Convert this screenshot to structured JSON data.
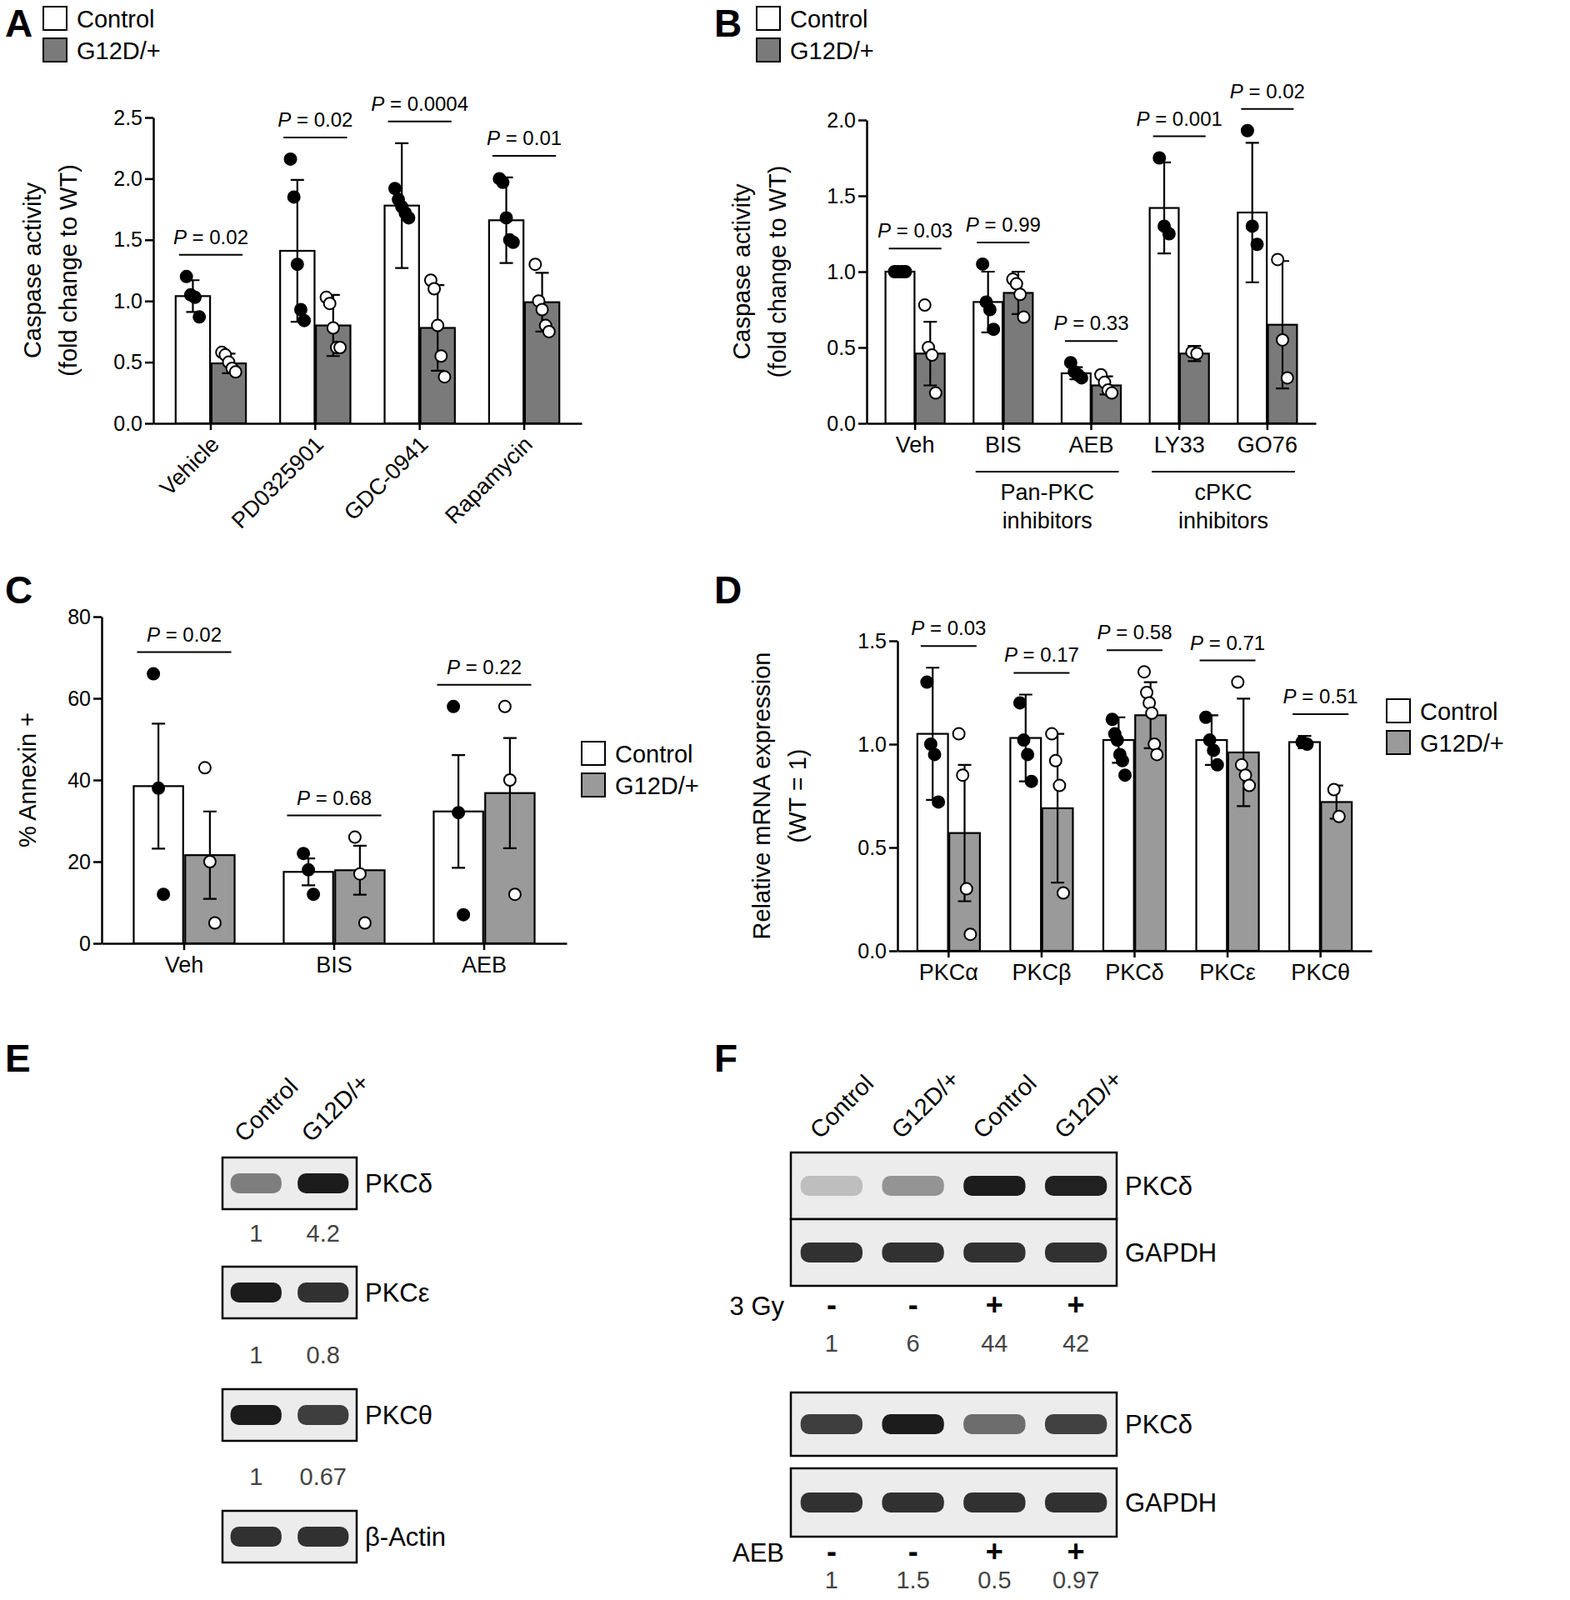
{
  "chart_data": [
    {
      "type": "bar",
      "panel": "A",
      "y_label": [
        "Caspase activity",
        "(fold change to WT)"
      ],
      "categories": [
        "Vehicle",
        "PD0325901",
        "GDC-0941",
        "Rapamycin"
      ],
      "ylim": [
        0,
        2.5
      ],
      "yticks": [
        {
          "value": 0,
          "label": "0.0"
        },
        {
          "value": 0.5,
          "label": "0.5"
        },
        {
          "value": 1,
          "label": "1.0"
        },
        {
          "value": 1.5,
          "label": "1.5"
        },
        {
          "value": 2,
          "label": "2.0"
        },
        {
          "value": 2.5,
          "label": "2.5"
        }
      ],
      "legend": "top-left",
      "series": [
        {
          "name": "Control",
          "color": "#ffffff",
          "marker": "filled-circle",
          "values": [
            1.04,
            1.41,
            1.78,
            1.66
          ],
          "errors": [
            0.13,
            0.58,
            0.51,
            0.35
          ],
          "points": [
            [
              1.2,
              1.05,
              1.03,
              0.87
            ],
            [
              2.16,
              1.85,
              1.3,
              0.93,
              0.84
            ],
            [
              1.92,
              1.83,
              1.77,
              1.72,
              1.68
            ],
            [
              2.0,
              1.97,
              1.68,
              1.5,
              1.48
            ]
          ]
        },
        {
          "name": "G12D/+",
          "color": "#7a7a7a",
          "marker": "open-circle",
          "values": [
            0.49,
            0.8,
            0.78,
            0.99
          ],
          "errors": [
            0.08,
            0.25,
            0.35,
            0.24
          ],
          "points": [
            [
              0.58,
              0.56,
              0.5,
              0.45,
              0.42
            ],
            [
              1.03,
              0.98,
              0.78,
              0.62,
              0.62
            ],
            [
              1.17,
              1.1,
              0.8,
              0.55,
              0.38
            ],
            [
              1.3,
              1.0,
              0.93,
              0.8,
              0.75
            ]
          ]
        }
      ],
      "p_labels": [
        "P = 0.02",
        "P = 0.02",
        "P = 0.0004",
        "P = 0.01"
      ]
    },
    {
      "type": "bar",
      "panel": "B",
      "y_label": [
        "Caspase activity",
        "(fold change to WT)"
      ],
      "categories": [
        "Veh",
        "BIS",
        "AEB",
        "LY33",
        "GO76"
      ],
      "groups": [
        {
          "label": [
            "Pan-PKC",
            "inhibitors"
          ],
          "members": [
            "BIS",
            "AEB"
          ]
        },
        {
          "label": [
            "cPKC",
            "inhibitors"
          ],
          "members": [
            "LY33",
            "GO76"
          ]
        }
      ],
      "ylim": [
        0,
        2
      ],
      "yticks": [
        {
          "value": 0,
          "label": "0.0"
        },
        {
          "value": 0.5,
          "label": "0.5"
        },
        {
          "value": 1,
          "label": "1.0"
        },
        {
          "value": 1.5,
          "label": "1.5"
        },
        {
          "value": 2,
          "label": "2.0"
        }
      ],
      "legend": "top-left",
      "series": [
        {
          "name": "Control",
          "color": "#ffffff",
          "marker": "filled-circle",
          "values": [
            1.0,
            0.8,
            0.33,
            1.42,
            1.39
          ],
          "errors": [
            0.01,
            0.2,
            0.04,
            0.3,
            0.46
          ],
          "points": [
            [
              1.0,
              1.0,
              1.0,
              1.0
            ],
            [
              1.05,
              0.8,
              0.75,
              0.62
            ],
            [
              0.4,
              0.34,
              0.32,
              0.3
            ],
            [
              1.75,
              1.3,
              1.25
            ],
            [
              1.93,
              1.3,
              1.18
            ]
          ]
        },
        {
          "name": "G12D/+",
          "color": "#7a7a7a",
          "marker": "open-circle",
          "values": [
            0.46,
            0.86,
            0.25,
            0.46,
            0.65
          ],
          "errors": [
            0.21,
            0.14,
            0.06,
            0.05,
            0.42
          ],
          "points": [
            [
              0.78,
              0.5,
              0.45,
              0.2
            ],
            [
              0.95,
              0.92,
              0.85,
              0.7
            ],
            [
              0.32,
              0.27,
              0.22,
              0.2
            ],
            [
              0.47,
              0.46
            ],
            [
              1.08,
              0.55,
              0.3
            ]
          ]
        }
      ],
      "p_labels": [
        "P = 0.03",
        "P = 0.99",
        "P = 0.33",
        "P = 0.001",
        "P = 0.02"
      ]
    },
    {
      "type": "bar",
      "panel": "C",
      "y_label": [
        "% Annexin +"
      ],
      "categories": [
        "Veh",
        "BIS",
        "AEB"
      ],
      "ylim": [
        0,
        80
      ],
      "yticks": [
        0,
        20,
        40,
        60,
        80
      ],
      "legend": "right",
      "series": [
        {
          "name": "Control",
          "color": "#ffffff",
          "marker": "filled-circle",
          "values": [
            38.5,
            17.5,
            32.3
          ],
          "errors": [
            15.3,
            3.3,
            13.8
          ],
          "points": [
            [
              66,
              38,
              12
            ],
            [
              22,
              18,
              12
            ],
            [
              58,
              32,
              7
            ]
          ]
        },
        {
          "name": "G12D/+",
          "color": "#9a9a9a",
          "marker": "open-circle",
          "values": [
            21.6,
            17.9,
            36.8
          ],
          "errors": [
            10.7,
            6.0,
            13.5
          ],
          "points": [
            [
              43,
              20,
              5
            ],
            [
              26,
              17,
              5
            ],
            [
              58,
              40,
              12
            ]
          ]
        }
      ],
      "p_labels": [
        "P = 0.02",
        "P = 0.68",
        "P = 0.22"
      ]
    },
    {
      "type": "bar",
      "panel": "D",
      "y_label": [
        "Relative mRNA expression",
        "(WT = 1)"
      ],
      "categories": [
        "PKCα",
        "PKCβ",
        "PKCδ",
        "PKCε",
        "PKCθ"
      ],
      "ylim": [
        0,
        1.5
      ],
      "yticks": [
        {
          "value": 0,
          "label": "0.0"
        },
        {
          "value": 0.5,
          "label": "0.5"
        },
        {
          "value": 1,
          "label": "1.0"
        },
        {
          "value": 1.5,
          "label": "1.5"
        }
      ],
      "legend": "right",
      "series": [
        {
          "name": "Control",
          "color": "#ffffff",
          "marker": "filled-circle",
          "values": [
            1.05,
            1.03,
            1.02,
            1.02,
            1.01
          ],
          "errors": [
            0.32,
            0.21,
            0.11,
            0.12,
            0.03
          ],
          "points": [
            [
              1.3,
              1.0,
              0.95,
              0.72
            ],
            [
              1.2,
              1.02,
              0.95,
              0.82
            ],
            [
              1.12,
              1.05,
              1.02,
              0.95,
              0.92,
              0.85
            ],
            [
              1.13,
              1.02,
              0.97,
              0.9
            ],
            [
              1.01,
              1.0
            ]
          ]
        },
        {
          "name": "G12D/+",
          "color": "#9a9a9a",
          "marker": "open-circle",
          "values": [
            0.57,
            0.69,
            1.14,
            0.96,
            0.72
          ],
          "errors": [
            0.33,
            0.36,
            0.16,
            0.26,
            0.08
          ],
          "points": [
            [
              1.05,
              0.85,
              0.3,
              0.08
            ],
            [
              1.05,
              0.92,
              0.8,
              0.28
            ],
            [
              1.35,
              1.25,
              1.2,
              1.15,
              1.0,
              0.95
            ],
            [
              1.3,
              0.9,
              0.85,
              0.8
            ],
            [
              0.78,
              0.65
            ]
          ]
        }
      ],
      "p_labels": [
        "P = 0.03",
        "P = 0.17",
        "P = 0.58",
        "P = 0.71",
        "P = 0.51"
      ]
    },
    {
      "type": "blot",
      "panel": "E",
      "lanes": [
        "Control",
        "G12D/+"
      ],
      "rows": [
        {
          "label": "PKCδ",
          "values": [
            1,
            4.2
          ]
        },
        {
          "label": "PKCε",
          "values": [
            1,
            0.8
          ]
        },
        {
          "label": "PKCθ",
          "values": [
            1,
            0.67
          ]
        },
        {
          "label": "β-Actin"
        }
      ]
    },
    {
      "type": "blot",
      "panel": "F",
      "lanes": [
        "Control",
        "G12D/+",
        "Control",
        "G12D/+"
      ],
      "sections": [
        {
          "rows": [
            {
              "label": "PKCδ",
              "values": [
                1,
                6,
                44,
                42
              ]
            },
            {
              "label": "GAPDH"
            }
          ],
          "treatment": {
            "label": "3 Gy",
            "signs": [
              "-",
              "-",
              "+",
              "+"
            ]
          }
        },
        {
          "rows": [
            {
              "label": "PKCδ",
              "values": [
                1,
                1.5,
                0.5,
                0.97
              ]
            },
            {
              "label": "GAPDH"
            }
          ],
          "treatment": {
            "label": "AEB",
            "signs": [
              "-",
              "-",
              "+",
              "+"
            ]
          }
        }
      ]
    }
  ]
}
